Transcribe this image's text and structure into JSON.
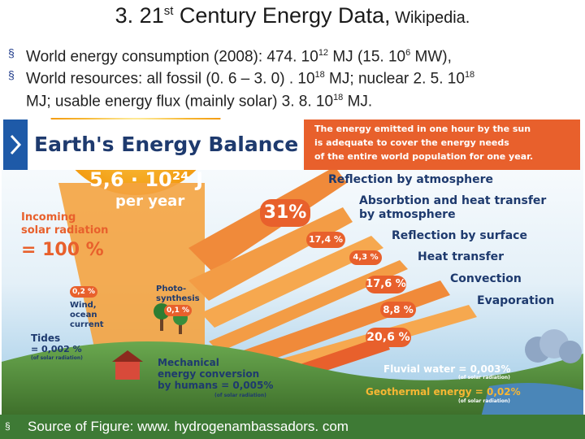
{
  "slide": {
    "title_main": "3. 21",
    "title_sup": "st",
    "title_rest": " Century Energy Data,",
    "title_source": " Wikipedia.",
    "bullet_marker": "§",
    "bullets": [
      {
        "a": "World energy consumption (2008): 474. 10",
        "s1": "12",
        "b": " MJ (15. 10",
        "s2": "6",
        "c": " MW),"
      },
      {
        "a": "World resources: all fossil (0. 6 – 3. 0) . 10",
        "s1": "18",
        "b": " MJ; nuclear 2. 5. 10",
        "s2": "18",
        "c": ""
      },
      {
        "a": "MJ; usable energy flux (mainly solar) 3. 8. 10",
        "s1": "18",
        "b": "  MJ.",
        "s2": "",
        "c": ""
      }
    ],
    "source": "Source of Figure: www. hydrogenambassadors. com"
  },
  "diagram": {
    "title": "Earth's Energy Balance",
    "solar_value": "5,6 · 10²⁴ J",
    "solar_period": "per year",
    "note": [
      "The energy emitted in one hour by the sun",
      "is adequate to cover the energy needs",
      "of the entire world population for one year."
    ],
    "incoming_label": [
      "Incoming",
      "solar radiation"
    ],
    "incoming_value": "= 100 %",
    "flows": [
      {
        "label": "Reflection by atmosphere",
        "value": ""
      },
      {
        "label": "Absorbtion and heat transfer",
        "label2": "by atmosphere",
        "value": "31%"
      },
      {
        "label": "Reflection by surface",
        "value": "17,4 %"
      },
      {
        "label": "Heat transfer",
        "value": "4,3 %"
      },
      {
        "label": "Convection",
        "value": "17,6 %"
      },
      {
        "label": "Evaporation",
        "value": "8,8 %"
      },
      {
        "label": "",
        "value": "20,6 %"
      }
    ],
    "photosynthesis": {
      "label": [
        "Photo-",
        "synthesis"
      ],
      "value": "0,1 %"
    },
    "wind": {
      "value": "0,2 %",
      "label": [
        "Wind,",
        "ocean",
        "current"
      ]
    },
    "tides": {
      "label": "Tides",
      "value": "= 0,002 %",
      "note": "(of solar radiation)"
    },
    "mechanical": {
      "lines": [
        "Mechanical",
        "energy conversion",
        "by humans = 0,005%"
      ],
      "note": "(of solar radiation)"
    },
    "fluvial": {
      "label": "Fluvial water = 0,003%",
      "note": "(of solar radiation)"
    },
    "geothermal": {
      "label": "Geothermal energy = 0,02%",
      "note": "(of solar radiation)"
    },
    "colors": {
      "accent": "#e8602c",
      "navy": "#1e3a6e",
      "sky": "#9cc9e6",
      "source_bar": "#3e7a35"
    }
  }
}
